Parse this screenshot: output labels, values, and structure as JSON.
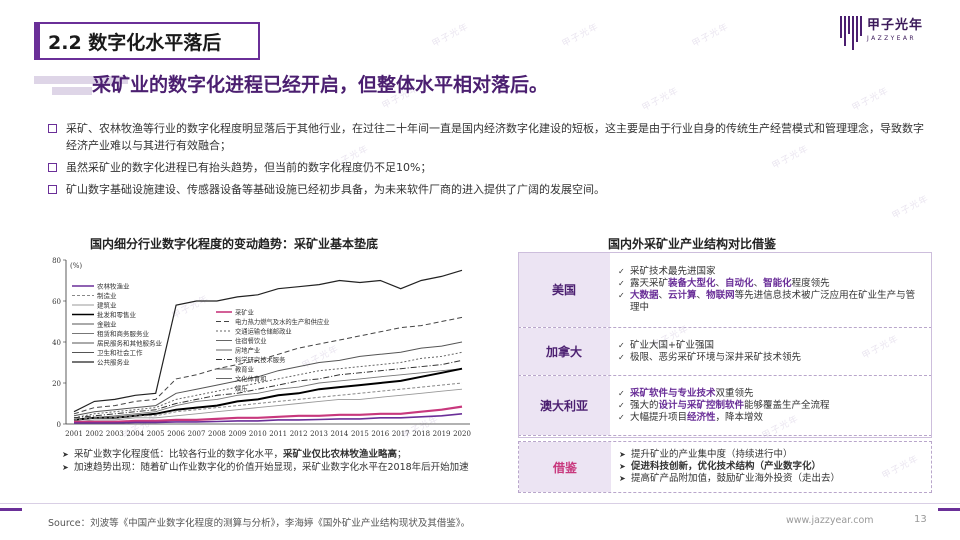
{
  "header": {
    "section_title": "2.2 数字化水平落后",
    "logo_cn": "甲子光年",
    "logo_en": "JAZZYEAR"
  },
  "watermark": "甲子光年",
  "headline": "采矿业的数字化进程已经开启，但整体水平相对落后。",
  "bullets": [
    "采矿、农林牧渔等行业的数字化程度明显落后于其他行业，在过往二十年间一直是国内经济数字化建设的短板，这主要是由于行业自身的传统生产经营模式和管理理念，导致数字经济产业难以与其进行有效融合；",
    "虽然采矿业的数字化进程已有抬头趋势，但当前的数字化程度仍不足10%；",
    "矿山数字基础设施建设、传感器设备等基础设施已经初步具备，为未来软件厂商的进入提供了广阔的发展空间。"
  ],
  "left_chart": {
    "title": "国内细分行业数字化程度的变动趋势：采矿业基本垫底",
    "notes": [
      {
        "prefix": "采矿业数字化程度低：比较各行业的数字化水平，",
        "bold": "采矿业仅比农林牧渔业略高",
        "suffix": "；"
      },
      {
        "prefix": "加速趋势出现：随着矿山作业数字化的价值开始显现，采矿业数字化水平在2018年后开始加速",
        "bold": "",
        "suffix": ""
      }
    ]
  },
  "chart_data": {
    "type": "line",
    "title": "",
    "xlabel": "",
    "ylabel": "",
    "unit_label": "(%)",
    "ylim": [
      0,
      80
    ],
    "yticks": [
      0,
      20,
      40,
      60,
      80
    ],
    "grid": false,
    "legend_placement": "top-left",
    "x": [
      2001,
      2002,
      2003,
      2004,
      2005,
      2006,
      2007,
      2008,
      2009,
      2010,
      2011,
      2012,
      2013,
      2014,
      2015,
      2016,
      2017,
      2018,
      2019,
      2020
    ],
    "legend_col1": [
      "农林牧渔业",
      "制造业",
      "建筑业",
      "批发和零售业",
      "金融业",
      "租赁和商务服务业",
      "居民服务和其他服务业",
      "卫生和社会工作",
      "公共服务业"
    ],
    "legend_col2": [
      "采矿业",
      "电力热力燃气及水的生产和供应业",
      "交通运输仓储邮政业",
      "住宿餐饮业",
      "房地产业",
      "科学研究技术服务",
      "教育业",
      "文化体育和",
      "娱乐"
    ],
    "series": [
      {
        "name": "公共服务业",
        "color": "#222222",
        "dash": "",
        "width": 1.2,
        "values": [
          6,
          11,
          12,
          14,
          15,
          58,
          60,
          60,
          62,
          63,
          66,
          67,
          68,
          70,
          69,
          70,
          66,
          70,
          72,
          75
        ]
      },
      {
        "name": "电力热力燃气及水的生产和供应业",
        "color": "#444444",
        "dash": "5,3",
        "width": 1,
        "values": [
          5,
          8,
          9,
          11,
          12,
          22,
          24,
          27,
          29,
          31,
          34,
          37,
          39,
          41,
          43,
          45,
          47,
          48,
          50,
          52
        ]
      },
      {
        "name": "金融业",
        "color": "#555555",
        "dash": "",
        "width": 1,
        "values": [
          4,
          6,
          7,
          8,
          9,
          15,
          17,
          19,
          21,
          23,
          26,
          28,
          30,
          31,
          33,
          34,
          35,
          37,
          38,
          40
        ]
      },
      {
        "name": "交通运输仓储邮政业",
        "color": "#666666",
        "dash": "2,2",
        "width": 1,
        "values": [
          3,
          5,
          6,
          7,
          8,
          12,
          14,
          16,
          18,
          20,
          22,
          24,
          26,
          27,
          28,
          29,
          30,
          32,
          33,
          35
        ]
      },
      {
        "name": "科学研究技术服务",
        "color": "#333333",
        "dash": "6,2,1,2",
        "width": 1,
        "values": [
          3,
          4,
          5,
          6,
          7,
          10,
          12,
          14,
          15,
          17,
          19,
          21,
          22,
          24,
          25,
          26,
          27,
          28,
          29,
          31
        ]
      },
      {
        "name": "租赁和商务服务业",
        "color": "#777777",
        "dash": "",
        "width": 0.9,
        "values": [
          2,
          3,
          4,
          5,
          6,
          9,
          11,
          12,
          14,
          15,
          17,
          18,
          20,
          21,
          22,
          23,
          24,
          25,
          26,
          27
        ]
      },
      {
        "name": "批发和零售业",
        "color": "#000000",
        "dash": "",
        "width": 2,
        "values": [
          2,
          3,
          3,
          4,
          5,
          7,
          8,
          9,
          11,
          12,
          14,
          15,
          17,
          18,
          19,
          20,
          21,
          23,
          25,
          27
        ]
      },
      {
        "name": "制造业",
        "color": "#888888",
        "dash": "3,2",
        "width": 1,
        "values": [
          2,
          3,
          3,
          4,
          4,
          6,
          7,
          8,
          9,
          10,
          11,
          12,
          13,
          14,
          15,
          16,
          17,
          18,
          19,
          20
        ]
      },
      {
        "name": "建筑业",
        "color": "#999999",
        "dash": "",
        "width": 0.9,
        "values": [
          1,
          2,
          2,
          3,
          3,
          4,
          5,
          6,
          7,
          8,
          9,
          10,
          11,
          12,
          12,
          13,
          14,
          15,
          16,
          17
        ]
      },
      {
        "name": "采矿业",
        "color": "#c8387d",
        "dash": "",
        "width": 2.2,
        "values": [
          1,
          1,
          1,
          1.5,
          1.5,
          2,
          2,
          2.5,
          3,
          3,
          3.5,
          4,
          4,
          4.5,
          4.5,
          5,
          5,
          6,
          7,
          8.5
        ]
      },
      {
        "name": "农林牧渔业",
        "color": "#6a2f98",
        "dash": "",
        "width": 1.6,
        "values": [
          0.5,
          0.5,
          0.5,
          0.8,
          0.8,
          1,
          1,
          1.2,
          1.5,
          1.5,
          2,
          2,
          2.2,
          2.5,
          2.5,
          3,
          3,
          3.5,
          4,
          5
        ]
      }
    ]
  },
  "comparison": {
    "title": "国内外采矿业产业结构对比借鉴",
    "rows": [
      {
        "label": "美国",
        "items": [
          [
            {
              "t": "采矿技术最先进国家"
            }
          ],
          [
            {
              "t": "露天采矿"
            },
            {
              "t": "装备大型化",
              "hl": true
            },
            {
              "t": "、"
            },
            {
              "t": "自动化",
              "hl": true
            },
            {
              "t": "、"
            },
            {
              "t": "智能化",
              "hl": true
            },
            {
              "t": "程度领先"
            }
          ],
          [
            {
              "t": "大数据",
              "hl": true
            },
            {
              "t": "、"
            },
            {
              "t": "云计算",
              "hl": true
            },
            {
              "t": "、"
            },
            {
              "t": "物联网",
              "hl": true
            },
            {
              "t": "等先进信息技术被广泛应用在矿业生产与管理中"
            }
          ]
        ]
      },
      {
        "label": "加拿大",
        "items": [
          [
            {
              "t": "矿业大国+矿业强国"
            }
          ],
          [
            {
              "t": "极限、恶劣采矿环境与深井采矿技术领先"
            }
          ]
        ]
      },
      {
        "label": "澳大利亚",
        "items": [
          [
            {
              "t": "采矿软件与专业技术",
              "hl": true
            },
            {
              "t": "双重领先"
            }
          ],
          [
            {
              "t": "强大的"
            },
            {
              "t": "设计与采矿控制软件",
              "hl": true
            },
            {
              "t": "能够覆盖生产全流程"
            }
          ],
          [
            {
              "t": "大幅提升项目"
            },
            {
              "t": "经济性",
              "hl": true
            },
            {
              "t": "，降本增效"
            }
          ]
        ]
      }
    ],
    "reference": {
      "label": "借鉴",
      "items": [
        [
          {
            "t": "提升矿业的产业集中度（持续进行中）"
          }
        ],
        [
          {
            "t": "促进科技创新，优化技术结构（产业数字化）",
            "bold": true
          }
        ],
        [
          {
            "t": "提高矿产品附加值，鼓励矿业海外投资（走出去）"
          }
        ]
      ]
    }
  },
  "footer": {
    "source": "Source：刘波等《中国产业数字化程度的测算与分析》，李海婷《国外矿业产业结构现状及其借鉴》。",
    "site": "www.jazzyear.com",
    "page": "13"
  }
}
